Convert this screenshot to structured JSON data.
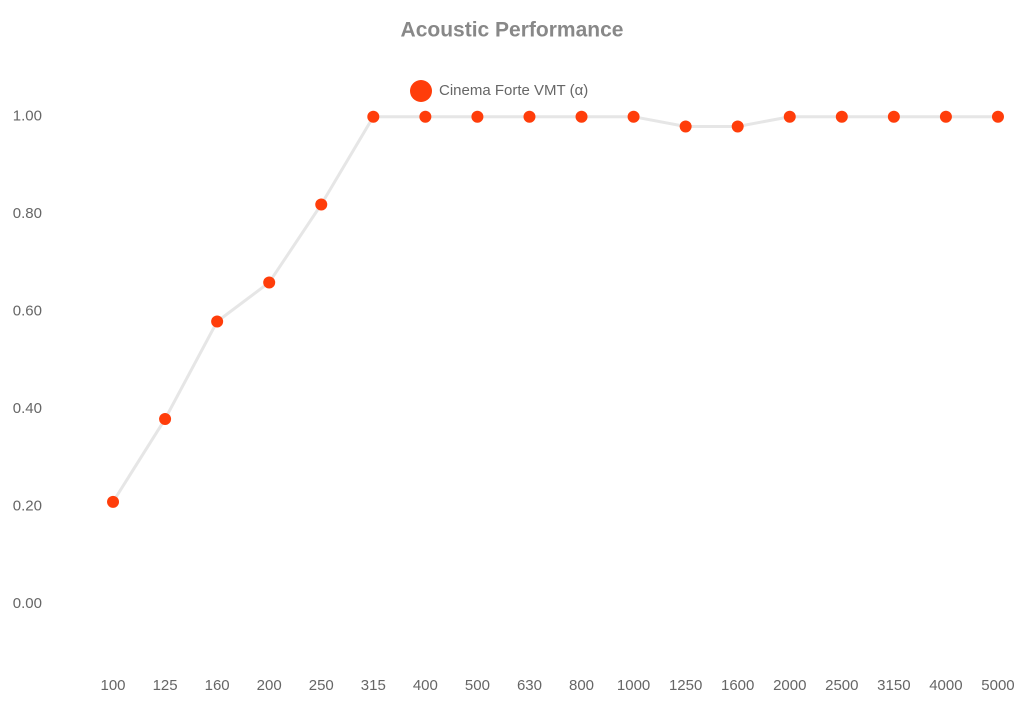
{
  "chart_data": {
    "type": "line",
    "title": "Acoustic Performance",
    "categories": [
      "100",
      "125",
      "160",
      "200",
      "250",
      "315",
      "400",
      "500",
      "630",
      "800",
      "1000",
      "1250",
      "1600",
      "2000",
      "2500",
      "3150",
      "4000",
      "5000"
    ],
    "series": [
      {
        "name": "Cinema Forte VMT (α)",
        "color": "#ff3d0a",
        "line_color": "#e6e6e6",
        "values": [
          0.21,
          0.38,
          0.58,
          0.66,
          0.82,
          1.0,
          1.0,
          1.0,
          1.0,
          1.0,
          1.0,
          0.98,
          0.98,
          1.0,
          1.0,
          1.0,
          1.0,
          1.0
        ]
      }
    ],
    "ylim": [
      -0.1,
      1.1
    ],
    "yticks": [
      {
        "value": 0,
        "label": "0.00"
      },
      {
        "value": 0.2,
        "label": "0.20"
      },
      {
        "value": 0.4,
        "label": "0.40"
      },
      {
        "value": 0.6,
        "label": "0.60"
      },
      {
        "value": 0.8,
        "label": "0.80"
      },
      {
        "value": 1,
        "label": "1.00"
      }
    ],
    "grid": false,
    "legend": "top"
  }
}
